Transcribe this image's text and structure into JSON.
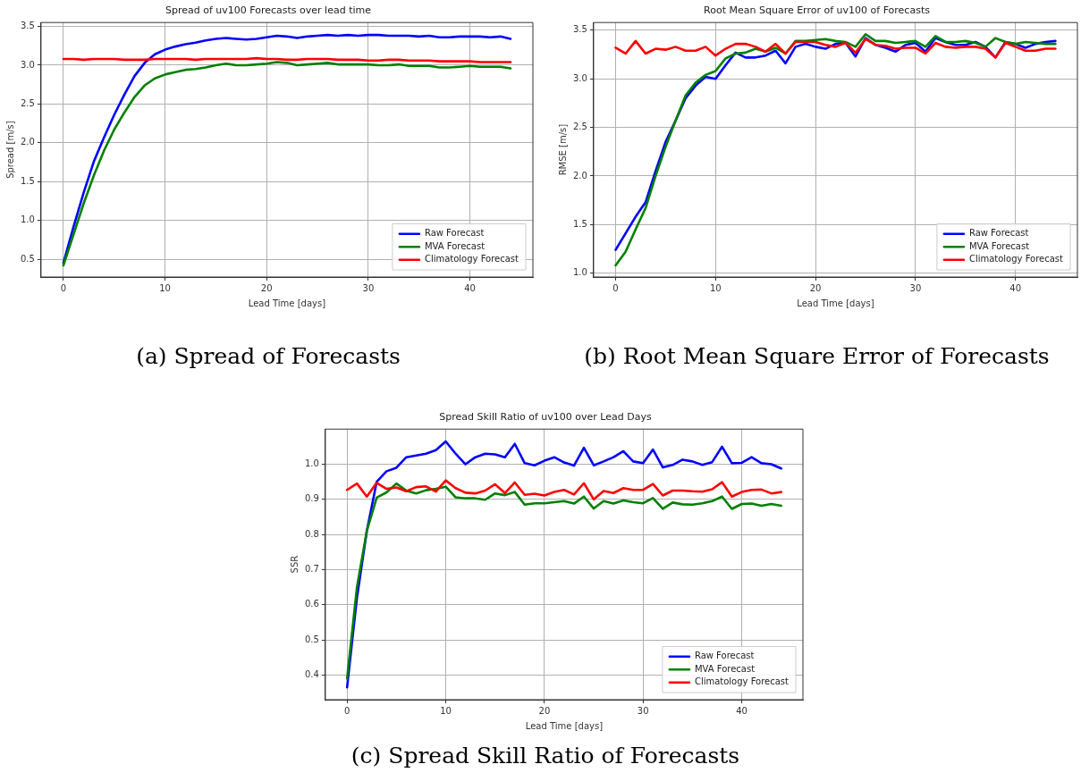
{
  "chart_data": [
    {
      "type": "line",
      "title": "Spread of uv100 Forecasts over lead time",
      "xlabel": "Lead Time [days]",
      "ylabel": "Spread [m/s]",
      "x": [
        0,
        1,
        2,
        3,
        4,
        5,
        6,
        7,
        8,
        9,
        10,
        11,
        12,
        13,
        14,
        15,
        16,
        17,
        18,
        19,
        20,
        21,
        22,
        23,
        24,
        25,
        26,
        27,
        28,
        29,
        30,
        31,
        32,
        33,
        34,
        35,
        36,
        37,
        38,
        39,
        40,
        41,
        42,
        43,
        44
      ],
      "xlim": [
        -2.2,
        46.2
      ],
      "xticks": [
        0,
        10,
        20,
        30,
        40
      ],
      "ylim": [
        0.27,
        3.55
      ],
      "yticks": [
        0.5,
        {
          "value": 1,
          "label": "1.0"
        },
        1.5,
        {
          "value": 2,
          "label": "2.0"
        },
        2.5,
        {
          "value": 3,
          "label": "3.0"
        },
        3.5
      ],
      "grid": true,
      "legend": "bottom right",
      "annotations": [
        "(a) Spread of Forecasts"
      ],
      "series": [
        {
          "name": "Raw Forecast",
          "color": "#0000ff",
          "values": [
            0.45,
            0.92,
            1.36,
            1.76,
            2.07,
            2.36,
            2.62,
            2.86,
            3.03,
            3.14,
            3.2,
            3.24,
            3.27,
            3.29,
            3.32,
            3.34,
            3.35,
            3.34,
            3.33,
            3.34,
            3.36,
            3.38,
            3.37,
            3.35,
            3.37,
            3.38,
            3.39,
            3.38,
            3.39,
            3.38,
            3.39,
            3.39,
            3.38,
            3.38,
            3.38,
            3.37,
            3.38,
            3.36,
            3.36,
            3.37,
            3.37,
            3.37,
            3.36,
            3.37,
            3.34
          ]
        },
        {
          "name": "MVA Forecast",
          "color": "#008000",
          "values": [
            0.42,
            0.82,
            1.22,
            1.58,
            1.9,
            2.17,
            2.39,
            2.59,
            2.74,
            2.83,
            2.88,
            2.91,
            2.94,
            2.95,
            2.97,
            3.0,
            3.02,
            3.0,
            3.0,
            3.01,
            3.02,
            3.04,
            3.03,
            3.0,
            3.01,
            3.02,
            3.03,
            3.01,
            3.01,
            3.01,
            3.01,
            3.0,
            3.0,
            3.01,
            2.99,
            2.99,
            2.99,
            2.97,
            2.97,
            2.98,
            2.99,
            2.98,
            2.98,
            2.98,
            2.96
          ]
        },
        {
          "name": "Climatology Forecast",
          "color": "#ff0000",
          "values": [
            3.08,
            3.08,
            3.07,
            3.08,
            3.08,
            3.08,
            3.07,
            3.07,
            3.07,
            3.08,
            3.08,
            3.08,
            3.08,
            3.07,
            3.08,
            3.08,
            3.08,
            3.08,
            3.08,
            3.09,
            3.08,
            3.08,
            3.07,
            3.07,
            3.08,
            3.08,
            3.08,
            3.07,
            3.07,
            3.07,
            3.06,
            3.06,
            3.07,
            3.07,
            3.06,
            3.06,
            3.06,
            3.05,
            3.05,
            3.05,
            3.05,
            3.04,
            3.04,
            3.04,
            3.04
          ]
        }
      ]
    },
    {
      "type": "line",
      "title": "Root Mean Square Error of uv100 of Forecasts",
      "xlabel": "Lead Time [days]",
      "ylabel": "RMSE [m/s]",
      "x": [
        0,
        1,
        2,
        3,
        4,
        5,
        6,
        7,
        8,
        9,
        10,
        11,
        12,
        13,
        14,
        15,
        16,
        17,
        18,
        19,
        20,
        21,
        22,
        23,
        24,
        25,
        26,
        27,
        28,
        29,
        30,
        31,
        32,
        33,
        34,
        35,
        36,
        37,
        38,
        39,
        40,
        41,
        42,
        43,
        44
      ],
      "xlim": [
        -2.2,
        46.2
      ],
      "xticks": [
        0,
        10,
        20,
        30,
        40
      ],
      "ylim": [
        0.96,
        3.58
      ],
      "yticks": [
        {
          "value": 1,
          "label": "1.0"
        },
        1.5,
        {
          "value": 2,
          "label": "2.0"
        },
        2.5,
        {
          "value": 3,
          "label": "3.0"
        },
        3.5
      ],
      "grid": true,
      "legend": "bottom right",
      "annotations": [
        "(b) Root Mean Square Error of Forecasts"
      ],
      "series": [
        {
          "name": "Raw Forecast",
          "color": "#0000ff",
          "values": [
            1.24,
            1.41,
            1.58,
            1.73,
            2.05,
            2.35,
            2.57,
            2.8,
            2.93,
            3.02,
            3.0,
            3.14,
            3.27,
            3.22,
            3.22,
            3.24,
            3.29,
            3.16,
            3.33,
            3.36,
            3.33,
            3.31,
            3.36,
            3.37,
            3.23,
            3.42,
            3.35,
            3.32,
            3.28,
            3.35,
            3.37,
            3.28,
            3.42,
            3.38,
            3.35,
            3.35,
            3.38,
            3.33,
            3.22,
            3.38,
            3.36,
            3.32,
            3.36,
            3.38,
            3.39
          ]
        },
        {
          "name": "MVA Forecast",
          "color": "#008000",
          "values": [
            1.08,
            1.22,
            1.45,
            1.67,
            2.0,
            2.3,
            2.57,
            2.83,
            2.96,
            3.04,
            3.08,
            3.21,
            3.26,
            3.27,
            3.31,
            3.28,
            3.32,
            3.26,
            3.39,
            3.39,
            3.4,
            3.41,
            3.39,
            3.38,
            3.33,
            3.46,
            3.39,
            3.39,
            3.37,
            3.38,
            3.39,
            3.33,
            3.44,
            3.38,
            3.38,
            3.39,
            3.37,
            3.33,
            3.42,
            3.38,
            3.36,
            3.38,
            3.37,
            3.36,
            3.36
          ]
        },
        {
          "name": "Climatology Forecast",
          "color": "#ff0000",
          "values": [
            3.32,
            3.26,
            3.39,
            3.26,
            3.31,
            3.3,
            3.33,
            3.29,
            3.29,
            3.33,
            3.24,
            3.31,
            3.36,
            3.36,
            3.33,
            3.28,
            3.36,
            3.26,
            3.38,
            3.38,
            3.38,
            3.35,
            3.33,
            3.37,
            3.27,
            3.41,
            3.35,
            3.34,
            3.31,
            3.32,
            3.32,
            3.26,
            3.37,
            3.33,
            3.32,
            3.33,
            3.33,
            3.31,
            3.22,
            3.37,
            3.33,
            3.29,
            3.29,
            3.31,
            3.31
          ]
        }
      ]
    },
    {
      "type": "line",
      "title": "Spread Skill Ratio of uv100 over Lead Days",
      "xlabel": "Lead Time [days]",
      "ylabel": "SSR",
      "x": [
        0,
        1,
        2,
        3,
        4,
        5,
        6,
        7,
        8,
        9,
        10,
        11,
        12,
        13,
        14,
        15,
        16,
        17,
        18,
        19,
        20,
        21,
        22,
        23,
        24,
        25,
        26,
        27,
        28,
        29,
        30,
        31,
        32,
        33,
        34,
        35,
        36,
        37,
        38,
        39,
        40,
        41,
        42,
        43,
        44
      ],
      "xlim": [
        -2.2,
        46.2
      ],
      "xticks": [
        0,
        10,
        20,
        30,
        40
      ],
      "ylim": [
        0.33,
        1.1
      ],
      "yticks": [
        0.4,
        0.5,
        0.6,
        0.7,
        0.8,
        0.9,
        {
          "value": 1,
          "label": "1.0"
        }
      ],
      "grid": true,
      "legend": "bottom right",
      "annotations": [
        "(c) Spread Skill Ratio of Forecasts"
      ],
      "series": [
        {
          "name": "Raw Forecast",
          "color": "#0000ff",
          "values": [
            0.365,
            0.62,
            0.81,
            0.95,
            0.98,
            0.99,
            1.02,
            1.025,
            1.03,
            1.04,
            1.065,
            1.03,
            1.0,
            1.02,
            1.03,
            1.028,
            1.02,
            1.058,
            1.003,
            0.997,
            1.01,
            1.02,
            1.005,
            0.996,
            1.047,
            0.997,
            1.008,
            1.02,
            1.037,
            1.008,
            1.003,
            1.042,
            0.991,
            0.998,
            1.013,
            1.008,
            0.998,
            1.006,
            1.05,
            1.003,
            1.004,
            1.02,
            1.003,
            1.0,
            0.988
          ]
        },
        {
          "name": "MVA Forecast",
          "color": "#008000",
          "values": [
            0.39,
            0.65,
            0.81,
            0.905,
            0.92,
            0.945,
            0.925,
            0.917,
            0.926,
            0.93,
            0.936,
            0.906,
            0.903,
            0.903,
            0.899,
            0.917,
            0.912,
            0.921,
            0.885,
            0.889,
            0.889,
            0.892,
            0.895,
            0.888,
            0.908,
            0.874,
            0.895,
            0.888,
            0.897,
            0.892,
            0.889,
            0.904,
            0.873,
            0.891,
            0.886,
            0.885,
            0.889,
            0.895,
            0.908,
            0.873,
            0.887,
            0.888,
            0.882,
            0.887,
            0.882
          ]
        },
        {
          "name": "Climatology Forecast",
          "color": "#ff0000",
          "values": [
            0.927,
            0.945,
            0.908,
            0.947,
            0.93,
            0.934,
            0.923,
            0.935,
            0.937,
            0.922,
            0.954,
            0.932,
            0.919,
            0.917,
            0.925,
            0.943,
            0.918,
            0.948,
            0.913,
            0.916,
            0.911,
            0.921,
            0.927,
            0.914,
            0.946,
            0.9,
            0.924,
            0.918,
            0.932,
            0.927,
            0.927,
            0.944,
            0.911,
            0.925,
            0.925,
            0.923,
            0.922,
            0.929,
            0.949,
            0.908,
            0.921,
            0.927,
            0.928,
            0.917,
            0.921
          ]
        }
      ]
    }
  ]
}
